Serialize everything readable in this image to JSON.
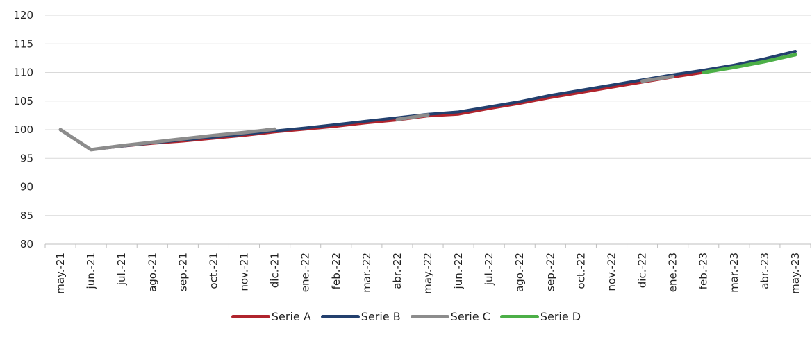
{
  "chart_data": {
    "type": "line",
    "categories": [
      "may.-21",
      "jun.-21",
      "jul.-21",
      "ago.-21",
      "sep.-21",
      "oct.-21",
      "nov.-21",
      "dic.-21",
      "ene.-22",
      "feb.-22",
      "mar.-22",
      "abr.-22",
      "may.-22",
      "jun.-22",
      "jul.-22",
      "ago.-22",
      "sep.-22",
      "oct.-22",
      "nov.-22",
      "dic.-22",
      "ene.-23",
      "feb.-23",
      "mar.-23",
      "abr.-23",
      "may.-23"
    ],
    "yticks": [
      80,
      85,
      90,
      95,
      100,
      105,
      110,
      115,
      120
    ],
    "ylim": [
      80,
      120
    ],
    "grid": true,
    "legend_position": "bottom",
    "series": [
      {
        "name": "Serie A",
        "color": "#b0242d",
        "values": [
          100,
          96.5,
          97.1,
          97.6,
          98.0,
          98.5,
          99.0,
          99.6,
          100.1,
          100.6,
          101.2,
          101.7,
          102.4,
          102.7,
          103.7,
          104.6,
          105.6,
          106.5,
          107.4,
          108.3,
          109.2,
          110.0,
          110.9,
          111.9,
          113.1
        ]
      },
      {
        "name": "Serie B",
        "color": "#23406e",
        "values": [
          100,
          96.5,
          97.1,
          97.7,
          98.2,
          98.7,
          99.2,
          99.8,
          100.3,
          100.9,
          101.5,
          102.1,
          102.7,
          103.1,
          104.0,
          104.9,
          106.0,
          106.9,
          107.8,
          108.7,
          109.6,
          110.4,
          111.3,
          112.4,
          113.7
        ]
      },
      {
        "name": "Serie C",
        "color": "#8c8c8c",
        "segments": [
          {
            "x": [
              "may.-21",
              "jun.-21",
              "jul.-21",
              "ago.-21",
              "sep.-21",
              "oct.-21",
              "nov.-21",
              "dic.-21"
            ],
            "values": [
              100,
              96.5,
              97.2,
              97.8,
              98.4,
              99.0,
              99.5,
              100.1
            ]
          },
          {
            "x": [
              "abr.-22",
              "may.-22"
            ],
            "values": [
              101.8,
              102.6
            ]
          },
          {
            "x": [
              "dic.-22",
              "ene.-23"
            ],
            "values": [
              108.5,
              109.3
            ]
          }
        ]
      },
      {
        "name": "Serie D",
        "color": "#4caf47",
        "segments": [
          {
            "x": [
              "feb.-23",
              "mar.-23",
              "abr.-23",
              "may.-23"
            ],
            "values": [
              110.0,
              110.9,
              111.9,
              113.1
            ]
          }
        ]
      }
    ]
  }
}
